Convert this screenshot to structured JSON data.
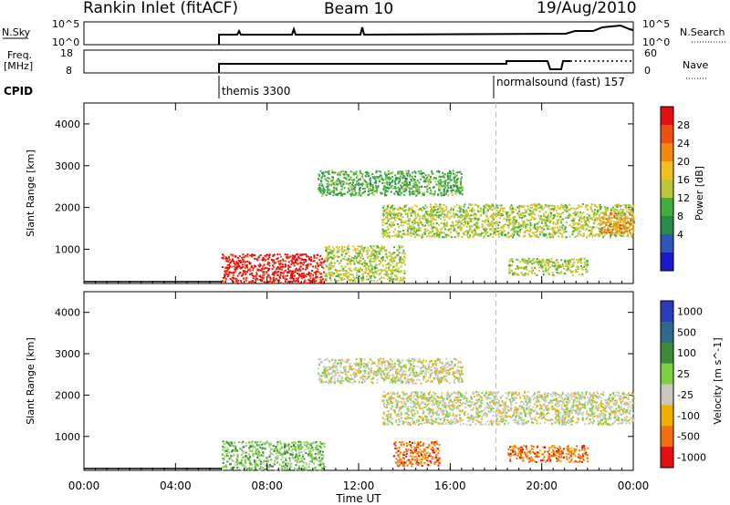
{
  "header": {
    "station": "Rankin Inlet (fitACF)",
    "beam": "Beam 10",
    "date": "19/Aug/2010"
  },
  "strips": {
    "nsky_label": "N.Sky",
    "nsky_ticks": [
      "10^5",
      "10^0"
    ],
    "nsearch_label": "N.Search",
    "nsearch_ticks": [
      "10^5",
      "10^0"
    ],
    "freq_label_1": "Freq.",
    "freq_label_2": "[MHz]",
    "freq_ticks": [
      "18",
      "8"
    ],
    "nave_label": "Nave",
    "nave_ticks": [
      "60",
      "0"
    ],
    "cpid_label": "CPID",
    "cpid_segments": [
      {
        "label": "themis 3300",
        "start_hour": 6.0
      },
      {
        "label": "normalsound (fast) 157",
        "start_hour": 18.0
      }
    ]
  },
  "chart_data": [
    {
      "type": "heatmap",
      "name": "power",
      "ylabel": "Slant Range [km]",
      "xlabel": "Time UT",
      "x_ticks": [
        "00:00",
        "04:00",
        "08:00",
        "12:00",
        "16:00",
        "20:00",
        "00:00"
      ],
      "xlim_hours": [
        0,
        24
      ],
      "y_ticks": [
        1000,
        2000,
        3000,
        4000
      ],
      "ylim": [
        180,
        4500
      ],
      "colorbar_label": "Power [dB]",
      "colorbar_ticks": [
        4,
        8,
        12,
        16,
        20,
        24,
        28
      ],
      "colorbar_colors": [
        "#1a1acc",
        "#2e55b8",
        "#2a8a4a",
        "#3fae3f",
        "#b8c83a",
        "#f0c020",
        "#f08a10",
        "#ee5010",
        "#e41010"
      ],
      "regions": [
        {
          "t0": 6.0,
          "t1": 10.5,
          "r0": 200,
          "r1": 900,
          "value": 27
        },
        {
          "t0": 10.5,
          "t1": 14.0,
          "r0": 250,
          "r1": 1100,
          "value": 14
        },
        {
          "t0": 10.2,
          "t1": 16.5,
          "r0": 2300,
          "r1": 2900,
          "value": 10
        },
        {
          "t0": 13.0,
          "t1": 24.0,
          "r0": 1300,
          "r1": 2100,
          "value": 15
        },
        {
          "t0": 18.5,
          "t1": 22.0,
          "r0": 400,
          "r1": 800,
          "value": 14
        },
        {
          "t0": 22.5,
          "t1": 24.0,
          "r0": 1400,
          "r1": 1900,
          "value": 20
        }
      ]
    },
    {
      "type": "heatmap",
      "name": "velocity",
      "ylabel": "Slant Range [km]",
      "xlabel": "Time UT",
      "x_ticks": [
        "00:00",
        "04:00",
        "08:00",
        "12:00",
        "16:00",
        "20:00",
        "00:00"
      ],
      "xlim_hours": [
        0,
        24
      ],
      "y_ticks": [
        1000,
        2000,
        3000,
        4000
      ],
      "ylim": [
        180,
        4500
      ],
      "colorbar_label": "Velocity [m s^-1]",
      "colorbar_ticks": [
        "1000",
        "500",
        "100",
        "25",
        "-25",
        "-100",
        "-500",
        "-1000"
      ],
      "colorbar_colors": [
        "#2a3ab8",
        "#2e6a8a",
        "#3a8a3a",
        "#7ad040",
        "#c8c8c0",
        "#f0b000",
        "#f07010",
        "#e41010"
      ],
      "regions": [
        {
          "t0": 6.0,
          "t1": 10.5,
          "r0": 200,
          "r1": 900,
          "value": 50
        },
        {
          "t0": 10.2,
          "t1": 16.5,
          "r0": 2300,
          "r1": 2900,
          "value": 0
        },
        {
          "t0": 13.0,
          "t1": 24.0,
          "r0": 1300,
          "r1": 2100,
          "value": 0
        },
        {
          "t0": 13.5,
          "t1": 15.5,
          "r0": 300,
          "r1": 900,
          "value": -300
        },
        {
          "t0": 18.5,
          "t1": 22.0,
          "r0": 400,
          "r1": 800,
          "value": -300
        }
      ]
    }
  ],
  "colors": {
    "gap_dash": "#bbbbbb"
  }
}
